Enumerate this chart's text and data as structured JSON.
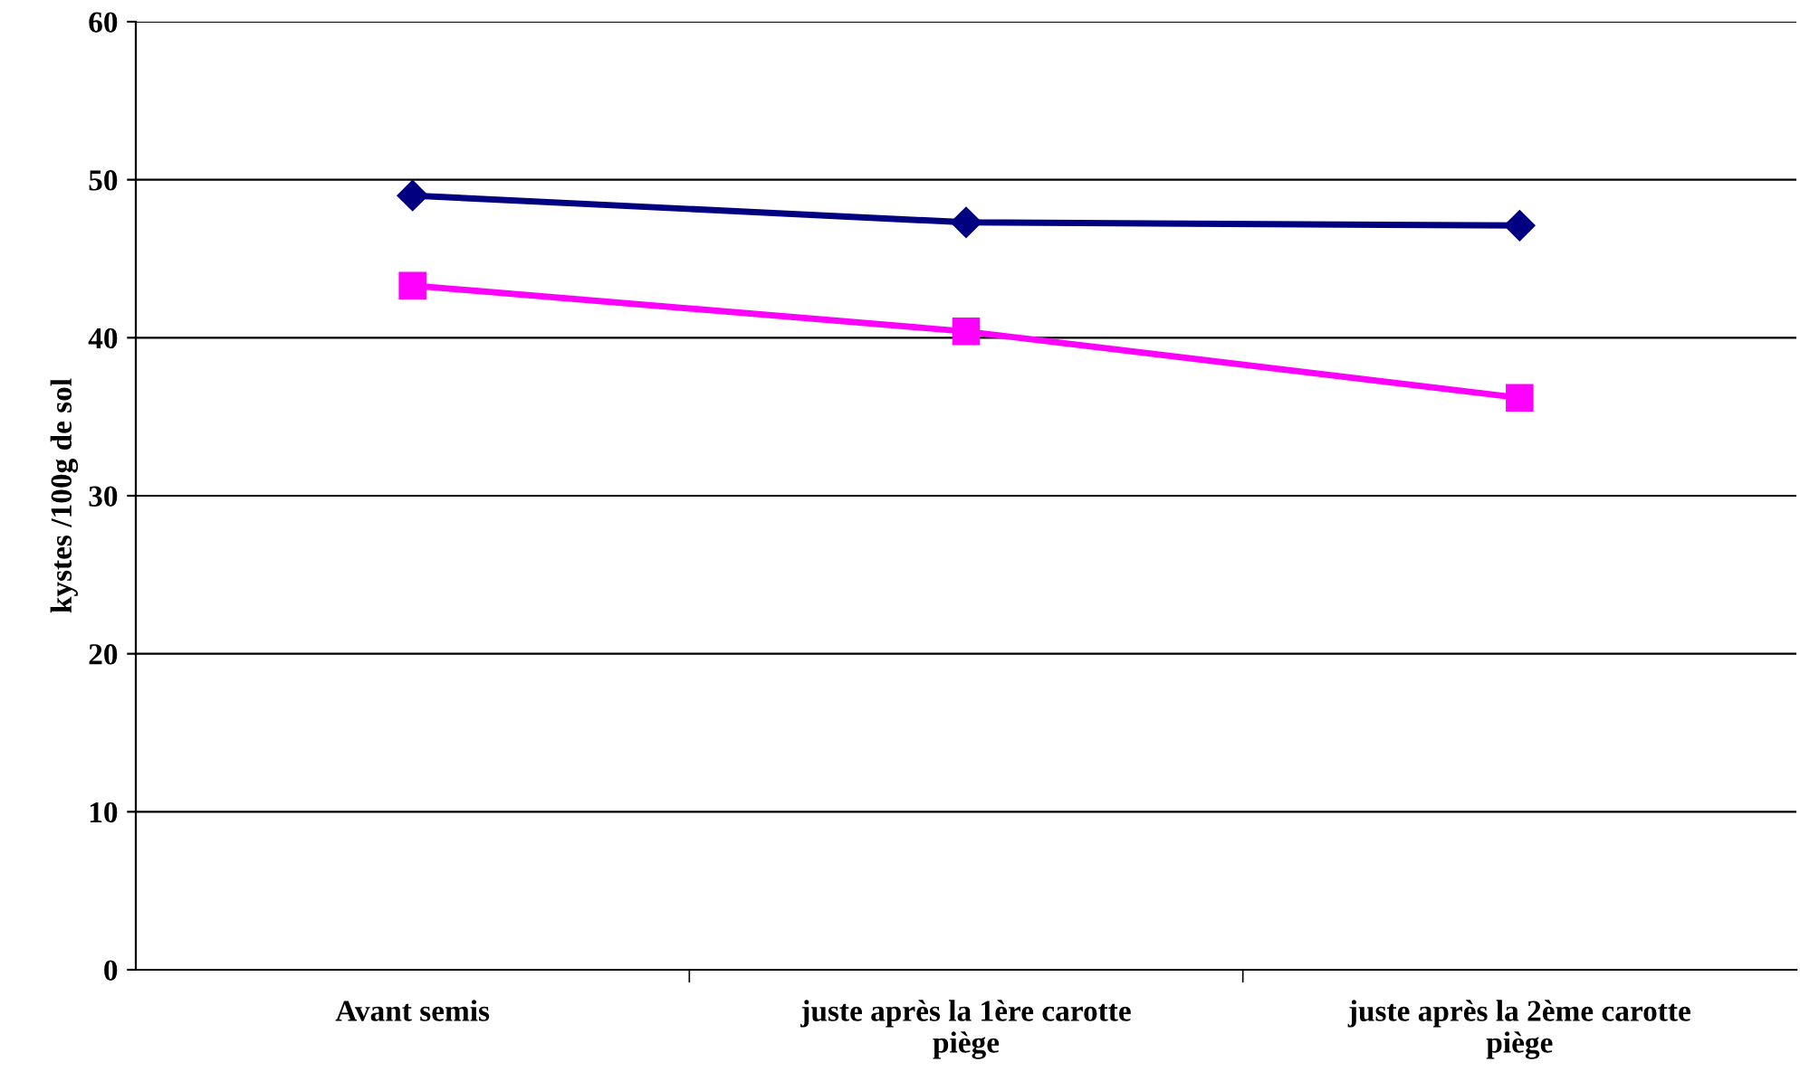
{
  "chart_data": {
    "type": "line",
    "ylabel": "kystes /100g de sol",
    "categories": [
      "Avant semis",
      "juste après la 1ère carotte piège",
      "juste après la 2ème carotte piège"
    ],
    "series": [
      {
        "color": "#000080",
        "marker": "diamond",
        "values": [
          49.0,
          47.3,
          47.1
        ]
      },
      {
        "color": "#ff00ff",
        "marker": "square",
        "values": [
          43.3,
          40.4,
          36.2
        ]
      }
    ],
    "ylim": [
      0,
      60
    ],
    "yticks": [
      0,
      10,
      20,
      30,
      40,
      50,
      60
    ],
    "grid": "y",
    "legend": false
  }
}
